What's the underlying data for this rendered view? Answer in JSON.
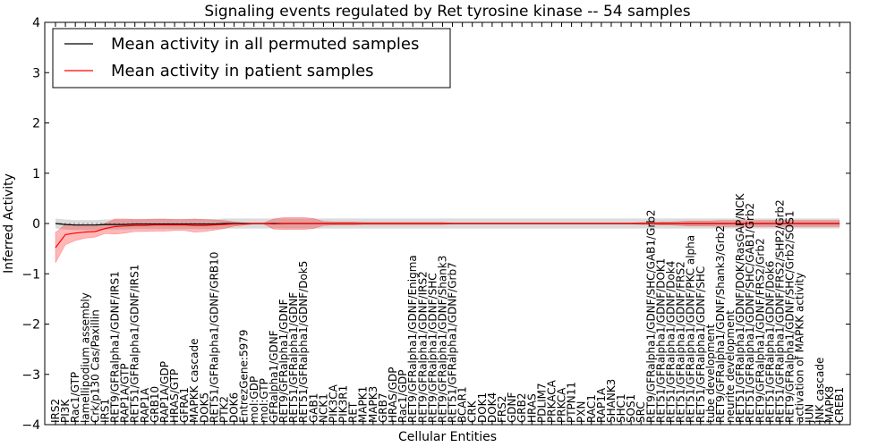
{
  "chart_data": {
    "type": "line",
    "title": "Signaling events regulated by Ret tyrosine kinase -- 54 samples",
    "xlabel": "Cellular Entities",
    "ylabel": "Inferred Activity",
    "ylim": [
      -4,
      4
    ],
    "yticks": [
      -4,
      -3,
      -2,
      -1,
      0,
      1,
      2,
      3,
      4
    ],
    "legend_position": "top-left",
    "categories": [
      "IRS2",
      "PI3K",
      "Rac1/GTP",
      "lamellipodium assembly",
      "Crk/p130 Cas/Paxillin",
      "IRS1",
      "RET9/GFRalpha1/GDNF/IRS1",
      "RAP1A/GTP",
      "RET51/GFRalpha1/GDNF/IRS1",
      "RAP1A",
      "GRB10",
      "RAP1A/GDP",
      "HRAS/GTP",
      "GFRA1",
      "MAPKK cascade",
      "DOK5",
      "RET51/GFRalpha1/GDNF/GRB10",
      "PTK2",
      "DOK6",
      "EntrezGene:5979",
      "mol:GDP",
      "mol:GTP",
      "GFRalpha1/GDNF",
      "RET9/GFRalpha1/GDNF",
      "RET51/GFRalpha1/GDNF",
      "RET51/GFRalpha1/GDNF/Dok5",
      "GAB1",
      "NCK1",
      "PIK3CA",
      "PIK3R1",
      "RET",
      "MAPK1",
      "MAPK3",
      "GRB7",
      "HRAS/GDP",
      "Rac1/GDP",
      "RET9/GFRalpha1/GDNF/Enigma",
      "RET9/GFRalpha1/GDNF/IRS2",
      "RET9/GFRalpha1/GDNF/SHC",
      "RET9/GFRalpha1/GDNF/Shank3",
      "RET51/GFRalpha1/GDNF/Grb7",
      "BCAR1",
      "CRK",
      "DOK1",
      "DOK4",
      "FRS2",
      "GDNF",
      "GRB2",
      "HRAS",
      "PDLIM7",
      "PRKACA",
      "PRKCA",
      "PTPN11",
      "PXN",
      "RAC1",
      "RAP1A",
      "SHANK3",
      "SHC1",
      "SOS1",
      "SRC",
      "RET9/GFRalpha1/GDNF/SHC/GAB1/Grb2",
      "RET51/GFRalpha1/GDNF/DOK1",
      "RET51/GFRalpha1/GDNF/Dok4",
      "RET51/GFRalpha1/GDNF/FRS2",
      "RET51/GFRalpha1/GDNF/PKC alpha",
      "RET51/GFRalpha1/GDNF/SHC",
      "tube development",
      "RET9/GFRalpha1/GDNF/Shank3/Grb2",
      "neurite development",
      "RET51/GFRalpha1/GDNF/DOK/RasGAP/NCK",
      "RET51/GFRalpha1/GDNF/SHC/GAB1/Grb2",
      "RET9/GFRalpha1/GDNF/FRS2/Grb2",
      "RET51/GFRalpha1/GDNF/Dok6",
      "RET51/GFRalpha1/GDNF/FRS2/SHP2/Grb2",
      "RET9/GFRalpha1/GDNF/SHC/Grb2/SOS1",
      "activation of MAPKK activity",
      "JUN",
      "JNK cascade",
      "MAPK8",
      "CREB1"
    ],
    "series": [
      {
        "name": "Mean activity in all permuted samples",
        "color": "#000000",
        "values": [
          0,
          -0.02,
          -0.03,
          -0.03,
          -0.03,
          -0.02,
          -0.02,
          -0.02,
          -0.01,
          -0.01,
          -0.01,
          -0.01,
          -0.01,
          -0.01,
          -0.01,
          -0.01,
          -0.01,
          0,
          0,
          0,
          0,
          0,
          0,
          0,
          0,
          0,
          0,
          0,
          0,
          0,
          0,
          0,
          0,
          0,
          0,
          0,
          0,
          0,
          0,
          0,
          0,
          0,
          0,
          0,
          0,
          0,
          0,
          0,
          0,
          0,
          0,
          0,
          0,
          0,
          0,
          0,
          0,
          0,
          0,
          0,
          0,
          0,
          0,
          0,
          0,
          0,
          0,
          0,
          0,
          0,
          0,
          0,
          0,
          0,
          0,
          0,
          0,
          0,
          0,
          0
        ],
        "band_halfwidth": [
          0.1,
          0.1,
          0.1,
          0.1,
          0.1,
          0.1,
          0.1,
          0.1,
          0.1,
          0.1,
          0.1,
          0.1,
          0.1,
          0.1,
          0.1,
          0.1,
          0.1,
          0.1,
          0.1,
          0.1,
          0.1,
          0.1,
          0.1,
          0.1,
          0.1,
          0.1,
          0.1,
          0.1,
          0.1,
          0.1,
          0.1,
          0.1,
          0.1,
          0.1,
          0.1,
          0.1,
          0.1,
          0.1,
          0.1,
          0.1,
          0.1,
          0.1,
          0.1,
          0.1,
          0.1,
          0.1,
          0.1,
          0.1,
          0.1,
          0.1,
          0.1,
          0.1,
          0.1,
          0.1,
          0.1,
          0.1,
          0.1,
          0.1,
          0.1,
          0.1,
          0.1,
          0.1,
          0.1,
          0.1,
          0.1,
          0.1,
          0.1,
          0.1,
          0.1,
          0.1,
          0.1,
          0.1,
          0.1,
          0.1,
          0.1,
          0.1,
          0.1,
          0.1,
          0.1,
          0.1
        ]
      },
      {
        "name": "Mean activity in patient samples",
        "color": "#ff0000",
        "values": [
          -0.48,
          -0.22,
          -0.19,
          -0.17,
          -0.16,
          -0.1,
          -0.06,
          -0.05,
          -0.04,
          -0.04,
          -0.03,
          -0.03,
          -0.03,
          -0.03,
          -0.04,
          -0.04,
          -0.03,
          -0.02,
          -0.01,
          -0.01,
          0,
          0,
          -0.01,
          0,
          0,
          0,
          0,
          0,
          0,
          0,
          0,
          0,
          0,
          0,
          0,
          0,
          0,
          0,
          0,
          0,
          0,
          0,
          0,
          0,
          0,
          0,
          0,
          0,
          0,
          0,
          0,
          0,
          0,
          0,
          0,
          0,
          0,
          0,
          0,
          0,
          0,
          0,
          0,
          0,
          0,
          0,
          0,
          0,
          0,
          0,
          0,
          0,
          0,
          0,
          0,
          0,
          0,
          0,
          0,
          0
        ],
        "band_halfwidth": [
          0.3,
          0.2,
          0.15,
          0.12,
          0.11,
          0.1,
          0.15,
          0.14,
          0.12,
          0.12,
          0.12,
          0.12,
          0.11,
          0.11,
          0.13,
          0.12,
          0.1,
          0.08,
          0.04,
          0.02,
          0.01,
          0.01,
          0.1,
          0.12,
          0.12,
          0.12,
          0.1,
          0.04,
          0.03,
          0.03,
          0.03,
          0.02,
          0.02,
          0.02,
          0.02,
          0.02,
          0.02,
          0.02,
          0.02,
          0.02,
          0.01,
          0.01,
          0.01,
          0.01,
          0.01,
          0.01,
          0.01,
          0.01,
          0.01,
          0.01,
          0.01,
          0.01,
          0.01,
          0.01,
          0.01,
          0.01,
          0.01,
          0.01,
          0.01,
          0.02,
          0.02,
          0.03,
          0.03,
          0.04,
          0.05,
          0.05,
          0.05,
          0.06,
          0.06,
          0.06,
          0.06,
          0.06,
          0.06,
          0.06,
          0.06,
          0.06,
          0.06,
          0.06,
          0.06,
          0.06
        ]
      }
    ]
  }
}
